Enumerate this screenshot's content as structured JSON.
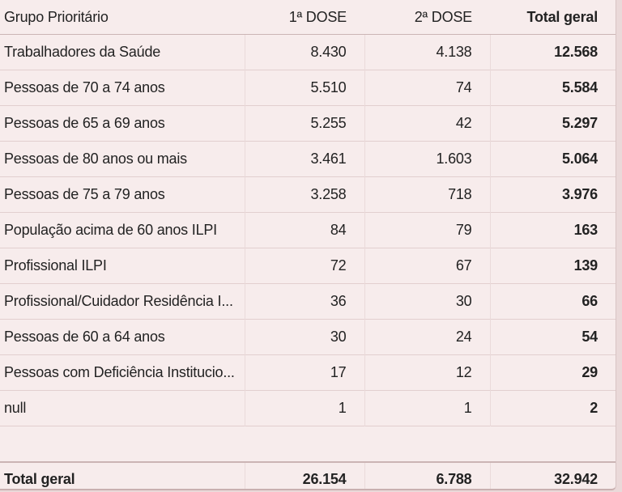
{
  "chart_data": {
    "type": "table",
    "columns": [
      "Grupo Prioritário",
      "1ª DOSE",
      "2ª DOSE",
      "Total geral"
    ],
    "rows": [
      {
        "group": "Trabalhadores da Saúde",
        "dose1": "8.430",
        "dose2": "4.138",
        "total": "12.568"
      },
      {
        "group": "Pessoas de 70 a 74 anos",
        "dose1": "5.510",
        "dose2": "74",
        "total": "5.584"
      },
      {
        "group": "Pessoas de 65 a 69 anos",
        "dose1": "5.255",
        "dose2": "42",
        "total": "5.297"
      },
      {
        "group": "Pessoas de 80 anos ou mais",
        "dose1": "3.461",
        "dose2": "1.603",
        "total": "5.064"
      },
      {
        "group": "Pessoas de 75 a 79 anos",
        "dose1": "3.258",
        "dose2": "718",
        "total": "3.976"
      },
      {
        "group": "População acima de 60 anos ILPI",
        "dose1": "84",
        "dose2": "79",
        "total": "163"
      },
      {
        "group": "Profissional ILPI",
        "dose1": "72",
        "dose2": "67",
        "total": "139"
      },
      {
        "group": "Profissional/Cuidador Residência I...",
        "dose1": "36",
        "dose2": "30",
        "total": "66"
      },
      {
        "group": "Pessoas de 60 a 64 anos",
        "dose1": "30",
        "dose2": "24",
        "total": "54"
      },
      {
        "group": "Pessoas com Deficiência Institucio...",
        "dose1": "17",
        "dose2": "12",
        "total": "29"
      },
      {
        "group": "null",
        "dose1": "1",
        "dose2": "1",
        "total": "2"
      }
    ],
    "totals": {
      "label": "Total geral",
      "dose1": "26.154",
      "dose2": "6.788",
      "total": "32.942"
    }
  }
}
